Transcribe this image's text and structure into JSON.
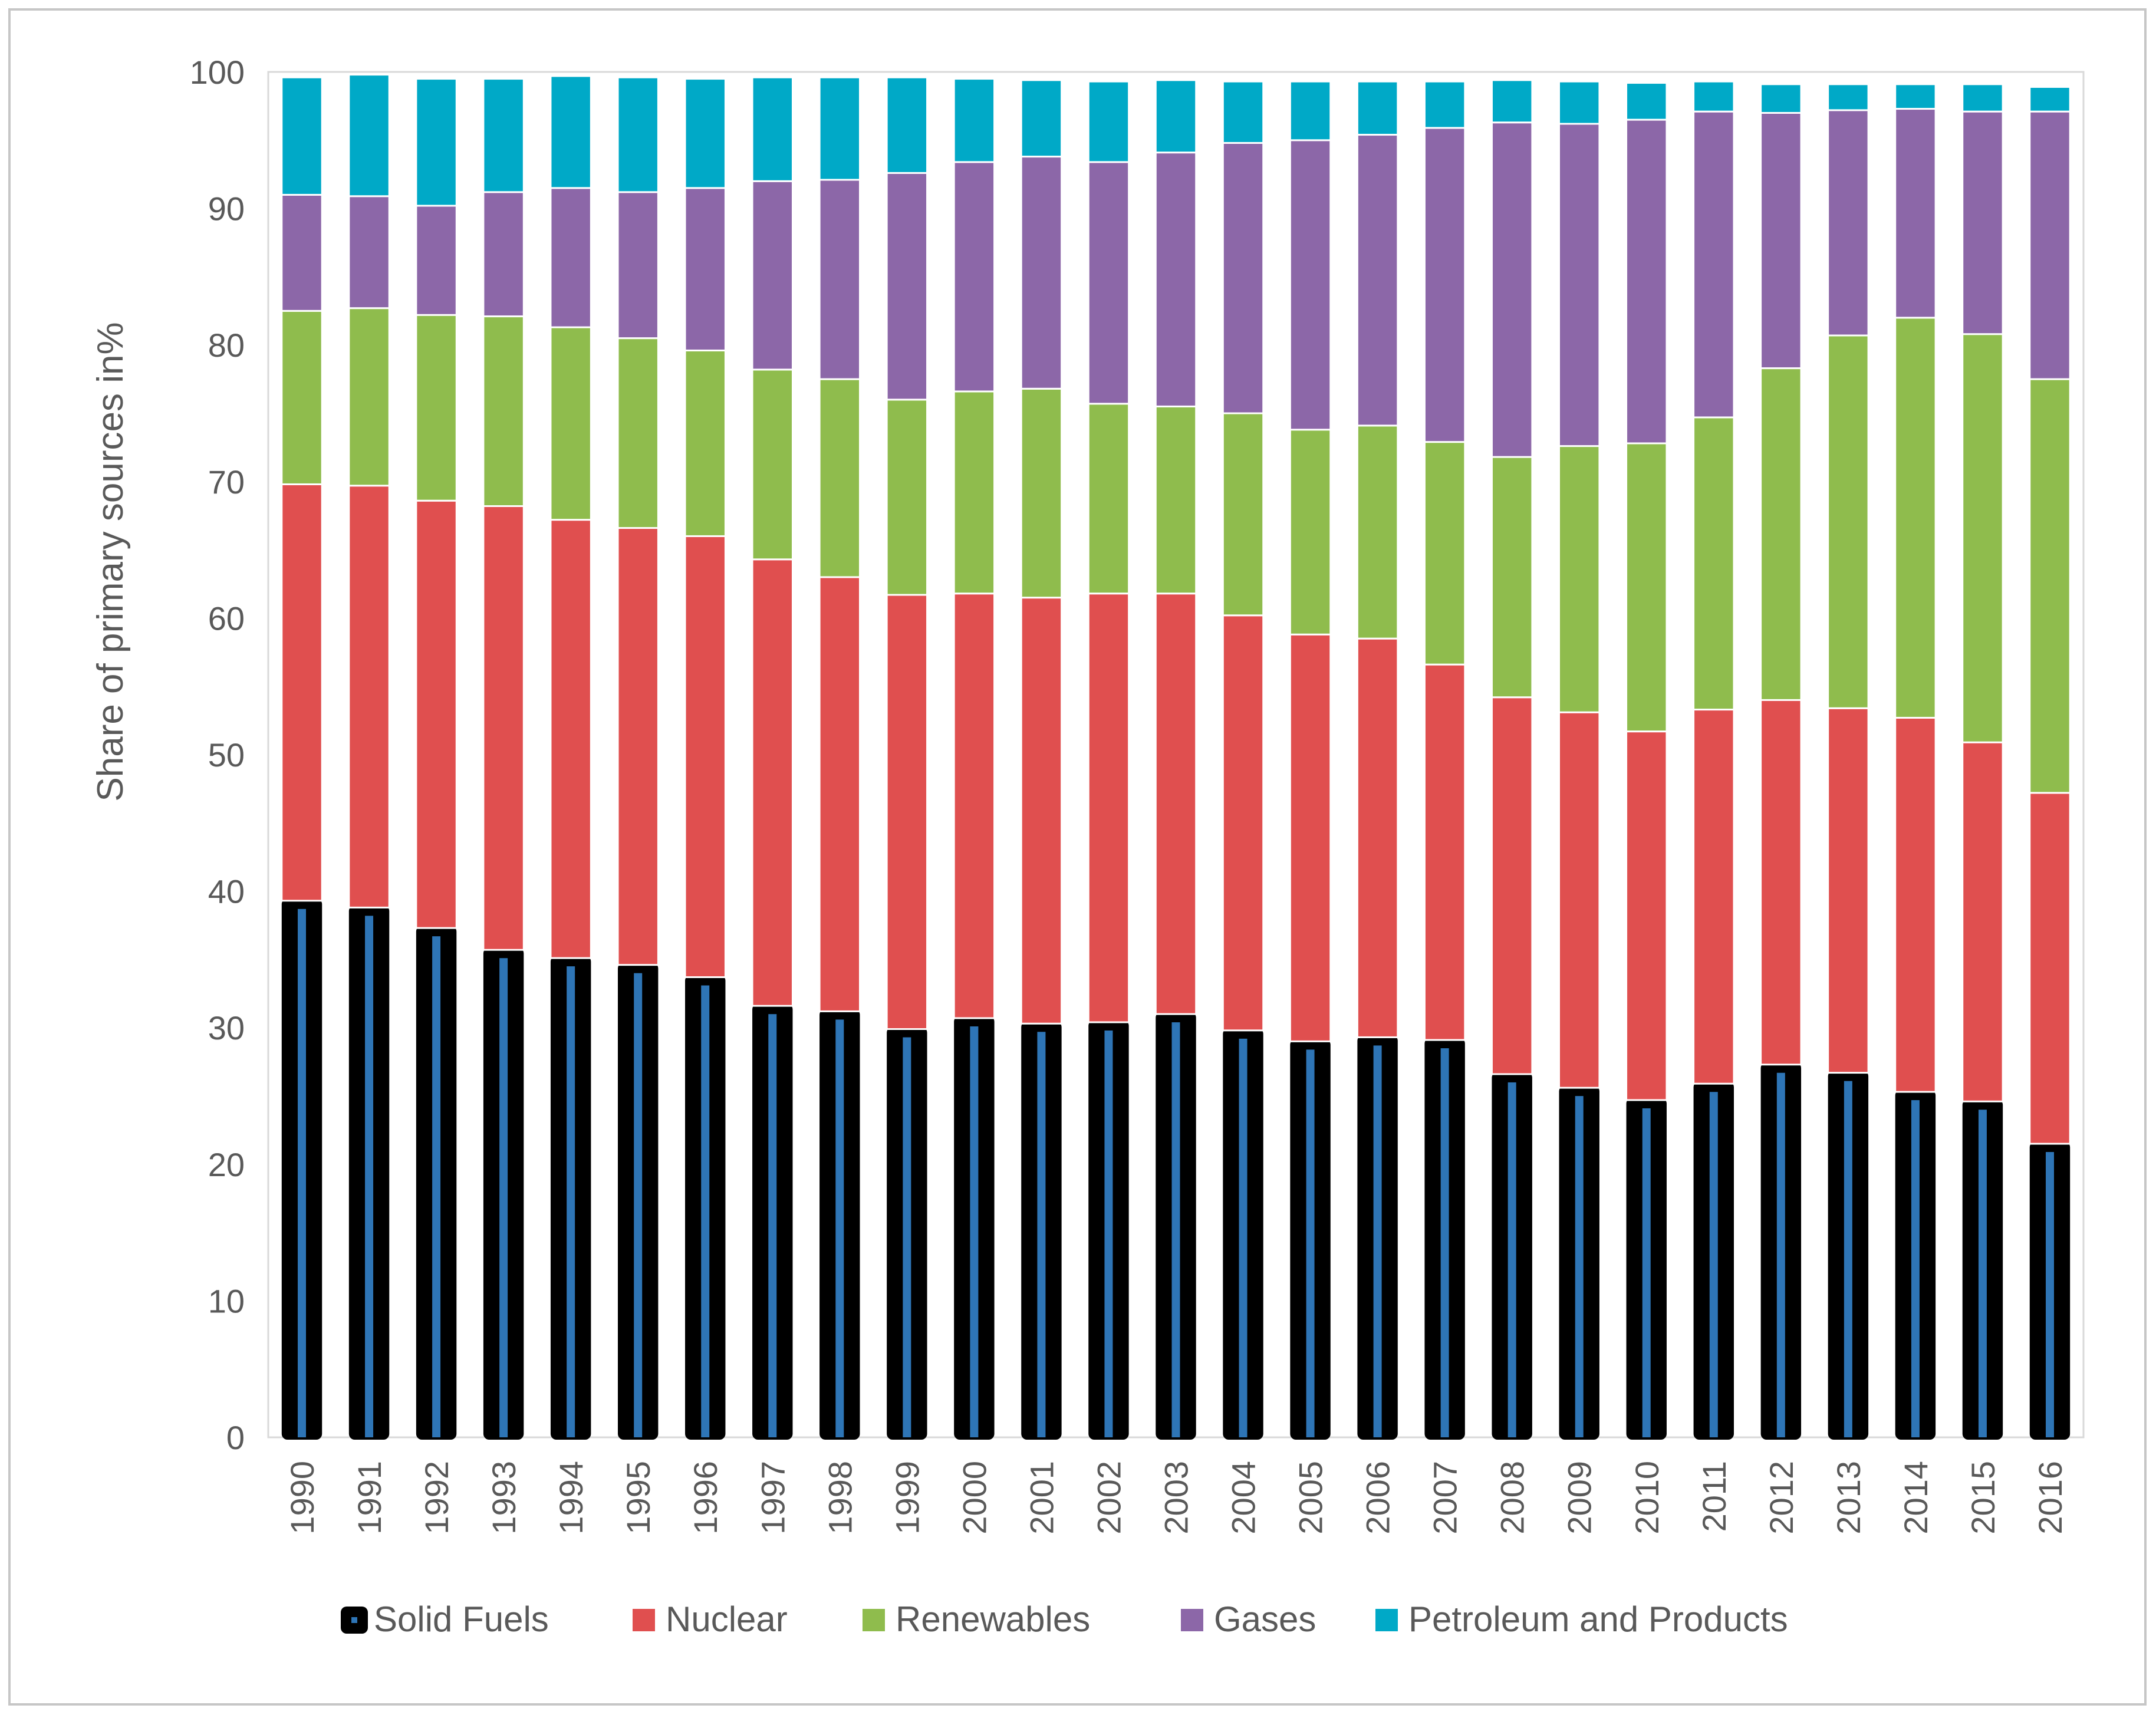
{
  "chart_data": {
    "type": "bar",
    "stacked": true,
    "title": "",
    "xlabel": "",
    "ylabel": "Share of primary sources in%",
    "ylim": [
      0,
      100
    ],
    "yticks": [
      "0",
      "10",
      "20",
      "30",
      "40",
      "50",
      "60",
      "70",
      "80",
      "90",
      "100"
    ],
    "grid": false,
    "legend_position": "bottom",
    "categories": [
      "1990",
      "1991",
      "1992",
      "1993",
      "1994",
      "1995",
      "1996",
      "1997",
      "1998",
      "1999",
      "2000",
      "2001",
      "2002",
      "2003",
      "2004",
      "2005",
      "2006",
      "2007",
      "2008",
      "2009",
      "2010",
      "2011",
      "2012",
      "2013",
      "2014",
      "2015",
      "2016"
    ],
    "series": [
      {
        "name": "Solid Fuels",
        "color": "#000000",
        "inner_color": "#2e75b6",
        "values": [
          39.3,
          38.8,
          37.3,
          35.7,
          35.1,
          34.6,
          33.7,
          31.6,
          31.2,
          29.9,
          30.7,
          30.3,
          30.4,
          31.0,
          29.8,
          29.0,
          29.3,
          29.1,
          26.6,
          25.6,
          24.7,
          25.9,
          27.3,
          26.7,
          25.3,
          24.6,
          21.5
        ]
      },
      {
        "name": "Nuclear",
        "color": "#e04f4f",
        "values": [
          30.5,
          30.9,
          31.3,
          32.5,
          32.1,
          32.0,
          32.3,
          32.7,
          31.8,
          31.8,
          31.1,
          31.2,
          31.4,
          30.8,
          30.4,
          29.8,
          29.2,
          27.5,
          27.6,
          27.5,
          27.0,
          27.4,
          26.7,
          26.7,
          27.4,
          26.3,
          25.7
        ]
      },
      {
        "name": "Renewables",
        "color": "#8fbc4d",
        "values": [
          12.7,
          13.0,
          13.6,
          13.9,
          14.1,
          13.9,
          13.6,
          13.9,
          14.5,
          14.3,
          14.8,
          15.3,
          13.9,
          13.7,
          14.8,
          15.0,
          15.6,
          16.3,
          17.6,
          19.5,
          21.1,
          21.4,
          24.3,
          27.3,
          29.3,
          29.9,
          30.3
        ]
      },
      {
        "name": "Gases",
        "color": "#8c67a8",
        "values": [
          8.5,
          8.2,
          8.0,
          9.1,
          10.2,
          10.7,
          11.9,
          13.8,
          14.6,
          16.6,
          16.8,
          17.0,
          17.7,
          18.6,
          19.8,
          21.2,
          21.3,
          23.0,
          24.5,
          23.6,
          23.7,
          22.4,
          18.7,
          16.5,
          15.3,
          16.3,
          19.6
        ]
      },
      {
        "name": "Petroleum and Products",
        "color": "#00a9c7",
        "values": [
          8.6,
          8.9,
          9.3,
          8.3,
          8.2,
          8.4,
          8.0,
          7.6,
          7.5,
          7.0,
          6.1,
          5.6,
          5.9,
          5.3,
          4.5,
          4.3,
          3.9,
          3.4,
          3.1,
          3.1,
          2.7,
          2.2,
          2.1,
          1.9,
          1.8,
          2.0,
          1.8
        ]
      }
    ]
  }
}
